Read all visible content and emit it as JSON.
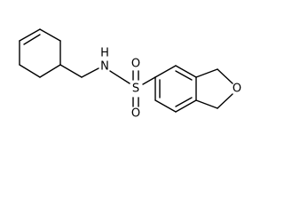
{
  "atoms": {
    "nitrogen": "N",
    "hydrogen": "H",
    "sulfur": "S",
    "sulfonyl_oxygen_top": "O",
    "sulfonyl_oxygen_bottom": "O",
    "ring_oxygen": "O"
  }
}
